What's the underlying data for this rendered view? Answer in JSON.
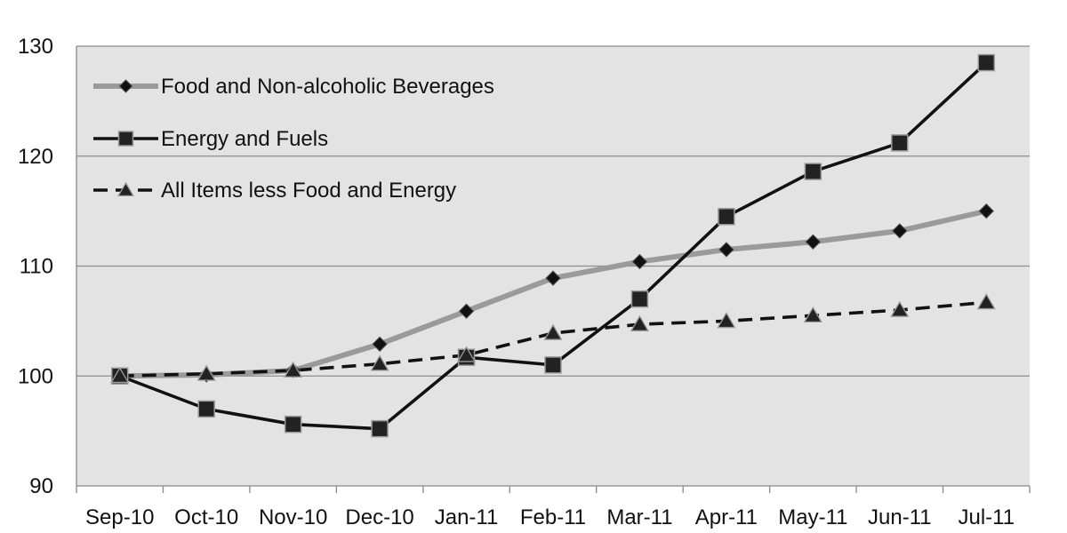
{
  "chart_data": {
    "type": "line",
    "title": "",
    "xlabel": "",
    "ylabel": "",
    "categories": [
      "Sep-10",
      "Oct-10",
      "Nov-10",
      "Dec-10",
      "Jan-11",
      "Feb-11",
      "Mar-11",
      "Apr-11",
      "May-11",
      "Jun-11",
      "Jul-11"
    ],
    "ylim": [
      90,
      130
    ],
    "yticks": [
      90,
      100,
      110,
      120,
      130
    ],
    "grid": true,
    "legend_position": "top-left",
    "plot_background": "#e3e3e3",
    "series": [
      {
        "name": "Food and Non-alcoholic Beverages",
        "marker": "diamond",
        "line_style": "solid",
        "line_color": "#9a9a9a",
        "marker_color": "#111111",
        "values": [
          100,
          100.1,
          100.5,
          102.9,
          105.9,
          108.9,
          110.4,
          111.5,
          112.2,
          113.2,
          115.0
        ]
      },
      {
        "name": "Energy and Fuels",
        "marker": "square",
        "line_style": "solid",
        "line_color": "#111111",
        "marker_color": "#222222",
        "values": [
          100,
          97.0,
          95.6,
          95.2,
          101.7,
          101.0,
          107.0,
          114.5,
          118.6,
          121.2,
          128.5
        ]
      },
      {
        "name": "All Items less Food and Energy",
        "marker": "triangle",
        "line_style": "dashed",
        "line_color": "#111111",
        "marker_color": "#222222",
        "values": [
          100,
          100.2,
          100.5,
          101.1,
          101.9,
          103.9,
          104.7,
          105.0,
          105.5,
          106.0,
          106.7
        ]
      }
    ]
  }
}
